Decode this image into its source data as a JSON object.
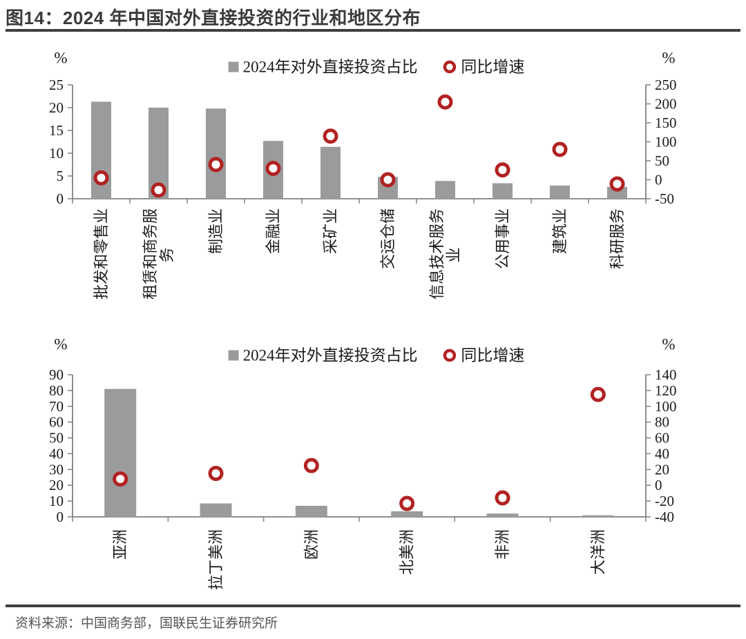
{
  "title": "图14：2024 年中国对外直接投资的行业和地区分布",
  "source_note": "资料来源：中国商务部，国联民生证券研究所",
  "colors": {
    "bar": "#9b9b9b",
    "marker": "#b22222",
    "marker_fill": "#ffffff",
    "axis": "#808080",
    "tick_text": "#1a1a1a",
    "title_text": "#3a3a3a",
    "rule": "#3f3f3f",
    "source_text": "#555555"
  },
  "chart_data": [
    {
      "type": "bar",
      "subtype": "bar+scatter",
      "grid": false,
      "legend_position": "top-center",
      "legend": [
        {
          "marker": "bar-square",
          "label": "2024年对外直接投资占比"
        },
        {
          "marker": "ring",
          "label": "同比增速"
        }
      ],
      "left_axis": {
        "title": "%",
        "min": 0,
        "max": 25,
        "step": 5,
        "ticks": [
          0,
          5,
          10,
          15,
          20,
          25
        ]
      },
      "right_axis": {
        "title": "%",
        "min": -50,
        "max": 250,
        "step": 50,
        "ticks": [
          -50,
          0,
          50,
          100,
          150,
          200,
          250
        ]
      },
      "categories": [
        "批发和零售业",
        "租赁和商务服\n务",
        "制造业",
        "金融业",
        "采矿业",
        "交运仓储",
        "信息技术服务\n业",
        "公用事业",
        "建筑业",
        "科研服务"
      ],
      "series": [
        {
          "name": "2024年对外直接投资占比",
          "type": "bar",
          "axis": "left",
          "values": [
            21.3,
            20.0,
            19.8,
            12.7,
            11.4,
            4.8,
            3.9,
            3.4,
            2.9,
            2.6
          ]
        },
        {
          "name": "同比增速",
          "type": "scatter",
          "axis": "right",
          "values": [
            5,
            -27,
            40,
            30,
            115,
            0,
            205,
            26,
            80,
            -11
          ]
        }
      ]
    },
    {
      "type": "bar",
      "subtype": "bar+scatter",
      "grid": false,
      "legend_position": "top-center",
      "legend": [
        {
          "marker": "bar-square",
          "label": "2024年对外直接投资占比"
        },
        {
          "marker": "ring",
          "label": "同比增速"
        }
      ],
      "left_axis": {
        "title": "%",
        "min": 0,
        "max": 90,
        "step": 10,
        "ticks": [
          0,
          10,
          20,
          30,
          40,
          50,
          60,
          70,
          80,
          90
        ]
      },
      "right_axis": {
        "title": "%",
        "min": -40,
        "max": 140,
        "step": 20,
        "ticks": [
          -40,
          -20,
          0,
          20,
          40,
          60,
          80,
          100,
          120,
          140
        ]
      },
      "categories": [
        "亚洲",
        "拉丁美洲",
        "欧洲",
        "北美洲",
        "非洲",
        "大洋洲"
      ],
      "series": [
        {
          "name": "2024年对外直接投资占比",
          "type": "bar",
          "axis": "left",
          "values": [
            81,
            8.5,
            7,
            3.5,
            2.1,
            1.0
          ]
        },
        {
          "name": "同比增速",
          "type": "scatter",
          "axis": "right",
          "values": [
            8,
            15,
            25,
            -23,
            -16,
            115
          ]
        }
      ]
    }
  ]
}
